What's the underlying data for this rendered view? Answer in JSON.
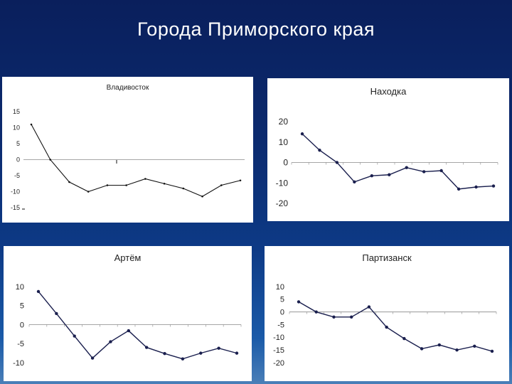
{
  "slide": {
    "title": "Города Приморского края"
  },
  "chart_data": [
    {
      "type": "line",
      "title": "Владивосток",
      "x": [
        1,
        2,
        3,
        4,
        5,
        6,
        7,
        8,
        9,
        10,
        11,
        12
      ],
      "series": [
        {
          "values": [
            11,
            0,
            -7,
            -10,
            -8,
            -8,
            -6,
            -7.5,
            -9,
            -11.5,
            -8,
            -6.5
          ]
        }
      ],
      "ylim": [
        -15,
        15
      ],
      "yticks": [
        15,
        10,
        5,
        0,
        -5,
        -10,
        -15
      ],
      "ytick_labels": [
        "15",
        "10",
        "5",
        "0",
        "-5",
        "-10",
        "-15"
      ],
      "grid": false,
      "line_color": "#111111",
      "marker": "small-dot"
    },
    {
      "type": "line",
      "title": "Находка",
      "x": [
        1,
        2,
        3,
        4,
        5,
        6,
        7,
        8,
        9,
        10,
        11,
        12
      ],
      "series": [
        {
          "values": [
            14,
            6,
            0,
            -9.5,
            -6.5,
            -6,
            -2.5,
            -4.5,
            -4,
            -13,
            -12,
            -11.5
          ]
        }
      ],
      "ylim": [
        -20,
        20
      ],
      "yticks": [
        20,
        10,
        0,
        -10,
        -20
      ],
      "ytick_labels": [
        "20",
        "10",
        "0",
        "-10",
        "-20"
      ],
      "grid": false,
      "line_color": "#1a1f4e",
      "marker": "dot"
    },
    {
      "type": "line",
      "title": "Артём",
      "x": [
        1,
        2,
        3,
        4,
        5,
        6,
        7,
        8,
        9,
        10,
        11,
        12
      ],
      "series": [
        {
          "values": [
            8.7,
            2.9,
            -3,
            -8.8,
            -4.5,
            -1.6,
            -6,
            -7.6,
            -9,
            -7.5,
            -6.2,
            -7.5
          ]
        }
      ],
      "ylim": [
        -10,
        10
      ],
      "yticks": [
        10,
        5,
        0,
        -5,
        -10
      ],
      "ytick_labels": [
        "10",
        "5",
        "0",
        "-5",
        "-10"
      ],
      "grid": false,
      "line_color": "#1a1f4e",
      "marker": "dot"
    },
    {
      "type": "line",
      "title": "Партизанск",
      "x": [
        1,
        2,
        3,
        4,
        5,
        6,
        7,
        8,
        9,
        10,
        11,
        12
      ],
      "series": [
        {
          "values": [
            4,
            0,
            -2,
            -2,
            2,
            -6,
            -10.5,
            -14.5,
            -13,
            -15,
            -13.5,
            -15.5
          ]
        }
      ],
      "ylim": [
        -20,
        10
      ],
      "yticks": [
        10,
        5,
        0,
        -5,
        -10,
        -15,
        -20
      ],
      "ytick_labels": [
        "10",
        "5",
        "0",
        "-5",
        "-10",
        "-15",
        "-20"
      ],
      "grid": false,
      "line_color": "#1a1f4e",
      "marker": "dot"
    }
  ]
}
